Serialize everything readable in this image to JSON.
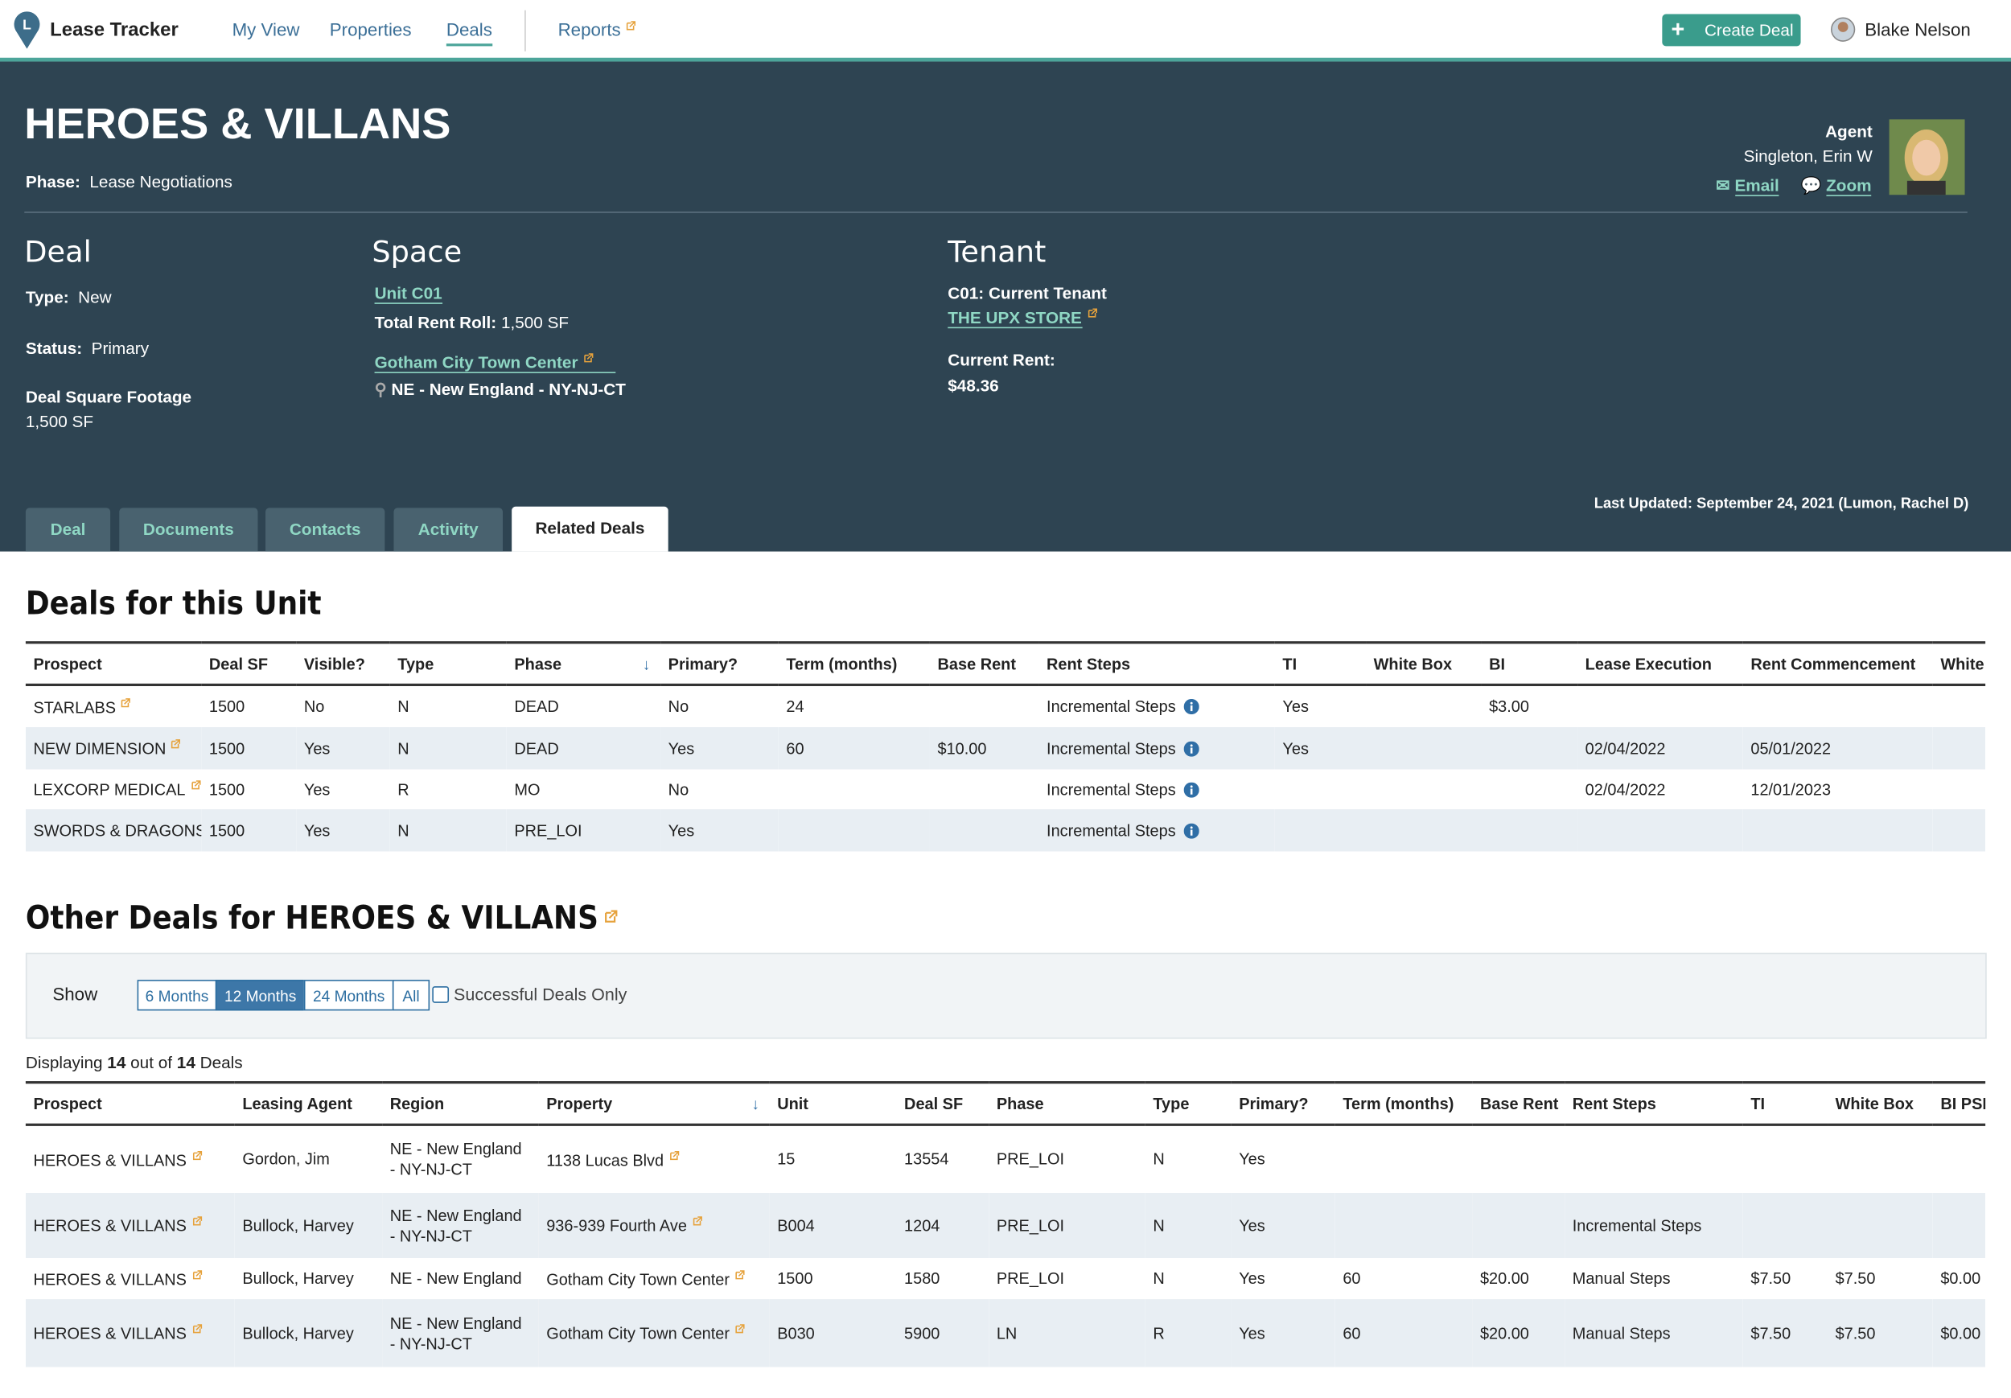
{
  "nav": {
    "brand": "Lease Tracker",
    "links": [
      "My View",
      "Properties",
      "Deals",
      "Reports"
    ],
    "create_button": "Create Deal",
    "user": "Blake Nelson"
  },
  "header": {
    "title": "HEROES & VILLANS",
    "phase_label": "Phase:",
    "phase": "Lease Negotiations",
    "agent": {
      "label": "Agent",
      "name": "Singleton, Erin W",
      "email": "Email",
      "zoom": "Zoom"
    },
    "deal": {
      "heading": "Deal",
      "type_label": "Type:",
      "type": "New",
      "status_label": "Status:",
      "status": "Primary",
      "sf_label": "Deal Square Footage",
      "sf": "1,500 SF"
    },
    "space": {
      "heading": "Space",
      "unit": "Unit C01",
      "rent_roll_label": "Total Rent Roll:",
      "rent_roll": "1,500 SF",
      "property": "Gotham City Town Center",
      "region": "NE - New England - NY-NJ-CT"
    },
    "tenant": {
      "heading": "Tenant",
      "current": "C01: Current Tenant",
      "store": "THE UPX STORE",
      "rent_label": "Current Rent:",
      "rent": "$48.36"
    },
    "last_updated_label": "Last Updated:",
    "last_updated": "September 24, 2021 (Lumon, Rachel D)",
    "tabs": [
      "Deal",
      "Documents",
      "Contacts",
      "Activity",
      "Related Deals"
    ]
  },
  "unit_deals": {
    "title": "Deals for this Unit",
    "columns": [
      "Prospect",
      "Deal SF",
      "Visible?",
      "Type",
      "Phase",
      "Primary?",
      "Term (months)",
      "Base Rent",
      "Rent Steps",
      "TI",
      "White Box",
      "BI",
      "Lease Execution",
      "Rent Commencement",
      "White"
    ],
    "rows": [
      [
        "STARLABS",
        "1500",
        "No",
        "N",
        "DEAD",
        "No",
        "24",
        null,
        "Incremental Steps",
        "Yes",
        null,
        "$3.00",
        null,
        null,
        null
      ],
      [
        "NEW DIMENSION",
        "1500",
        "Yes",
        "N",
        "DEAD",
        "Yes",
        "60",
        "$10.00",
        "Incremental Steps",
        "Yes",
        null,
        null,
        "02/04/2022",
        "05/01/2022",
        null
      ],
      [
        "LEXCORP MEDICAL",
        "1500",
        "Yes",
        "R",
        "MO",
        "No",
        null,
        null,
        "Incremental Steps",
        null,
        null,
        null,
        "02/04/2022",
        "12/01/2023",
        null
      ],
      [
        "SWORDS & DRAGONS",
        "1500",
        "Yes",
        "N",
        "PRE_LOI",
        "Yes",
        null,
        null,
        "Incremental Steps",
        null,
        null,
        null,
        null,
        null,
        null
      ]
    ]
  },
  "other_deals": {
    "title": "Other Deals for HEROES & VILLANS",
    "show_label": "Show",
    "ranges": [
      "6 Months",
      "12 Months",
      "24 Months",
      "All"
    ],
    "checkbox": "Successful Deals Only",
    "displaying": [
      "Displaying",
      "14",
      "out of",
      "14",
      "Deals"
    ],
    "columns": [
      "Prospect",
      "Leasing Agent",
      "Region",
      "Property",
      "Unit",
      "Deal SF",
      "Phase",
      "Type",
      "Primary?",
      "Term (months)",
      "Base Rent",
      "Rent Steps",
      "TI",
      "White Box",
      "BI PSF"
    ],
    "rows": [
      [
        "HEROES & VILLANS",
        "Gordon, Jim",
        "NE - New England - NY-NJ-CT",
        "1138 Lucas Blvd",
        "15",
        "13554",
        "PRE_LOI",
        "N",
        "Yes",
        null,
        null,
        null,
        null,
        null,
        null
      ],
      [
        "HEROES & VILLANS",
        "Bullock, Harvey",
        "NE - New England - NY-NJ-CT",
        "936-939 Fourth Ave",
        "B004",
        "1204",
        "PRE_LOI",
        "N",
        "Yes",
        null,
        null,
        "Incremental Steps",
        null,
        null,
        null
      ],
      [
        "HEROES & VILLANS",
        "Bullock, Harvey",
        "NE - New England",
        "Gotham City Town Center",
        "1500",
        "1580",
        "PRE_LOI",
        "N",
        "Yes",
        "60",
        "$20.00",
        "Manual Steps",
        "$7.50",
        "$7.50",
        "$0.00"
      ],
      [
        "HEROES & VILLANS",
        "Bullock, Harvey",
        "NE - New England - NY-NJ-CT",
        "Gotham City Town Center",
        "B030",
        "5900",
        "LN",
        "R",
        "Yes",
        "60",
        "$20.00",
        "Manual Steps",
        "$7.50",
        "$7.50",
        "$0.00"
      ]
    ]
  }
}
